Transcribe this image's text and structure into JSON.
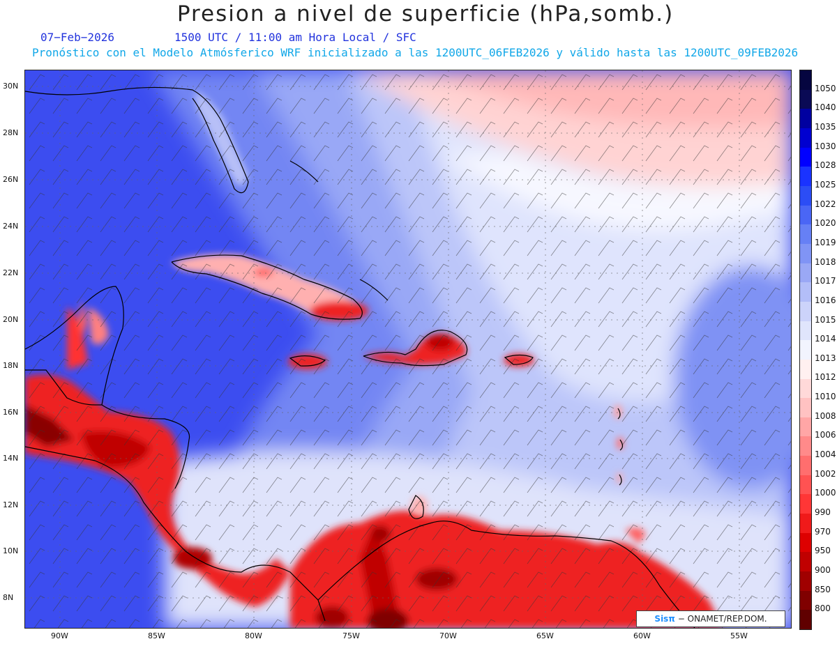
{
  "title": "Presion a nivel de superficie (hPa,somb.)",
  "date_line": "07−Feb−2026",
  "time_line": "1500 UTC / 11:00 am Hora Local / SFC",
  "model_line": "Pronóstico con el Modelo Atmósferico WRF inicializado a las 1200UTC_06FEB2026 y válido hasta las  1200UTC_09FEB2026",
  "lat_labels": [
    "30N",
    "28N",
    "26N",
    "24N",
    "22N",
    "20N",
    "18N",
    "16N",
    "14N",
    "12N",
    "10N",
    "8N"
  ],
  "lon_labels": [
    "90W",
    "85W",
    "80W",
    "75W",
    "70W",
    "65W",
    "60W",
    "55W"
  ],
  "colorbar": {
    "labels": [
      "1050",
      "1040",
      "1035",
      "1030",
      "1028",
      "1025",
      "1022",
      "1020",
      "1019",
      "1018",
      "1017",
      "1016",
      "1015",
      "1014",
      "1013",
      "1012",
      "1010",
      "1008",
      "1006",
      "1004",
      "1002",
      "1000",
      "990",
      "970",
      "950",
      "900",
      "850",
      "800"
    ],
    "colors": [
      "#0a0a55",
      "#0000a0",
      "#0000d0",
      "#0000ff",
      "#1a33ff",
      "#2c4df5",
      "#4a66f5",
      "#6680f5",
      "#8094f5",
      "#9aa8f5",
      "#b3bef8",
      "#ccd3fa",
      "#e0e5fc",
      "#f2f4fe",
      "#fff0f0",
      "#ffd9d9",
      "#ffc2c2",
      "#ffa6a6",
      "#ff8a8a",
      "#ff6e6e",
      "#ff5252",
      "#ff3636",
      "#f01a1a",
      "#dd0000",
      "#c00000",
      "#a00000",
      "#800000",
      "#600000"
    ]
  },
  "credit": {
    "brand": "Sisπ",
    "org": "− ONAMET/REP.DOM."
  },
  "palette": {
    "high_pressure": "#3c4df0",
    "neutral": "#f4f5ff",
    "ridge_pink": "#ffc8c8",
    "low_red": "#ee1f1f",
    "low_dark": "#8a0000"
  }
}
